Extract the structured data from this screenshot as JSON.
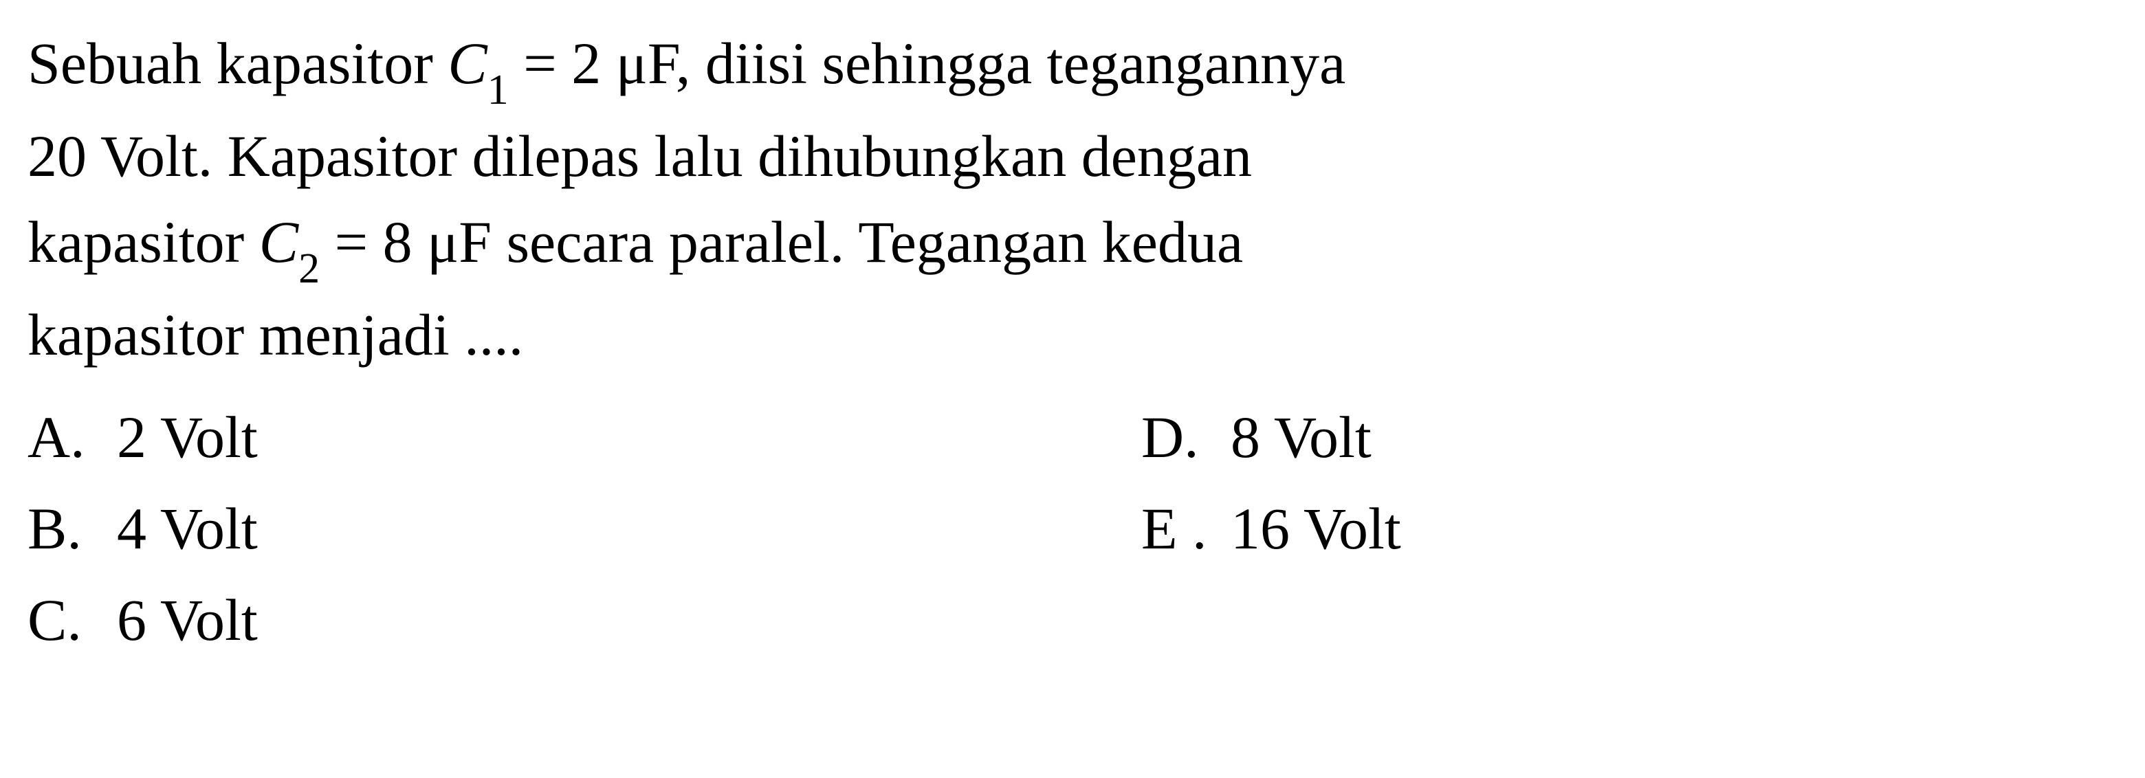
{
  "question": {
    "line1_part1": "Sebuah kapasitor ",
    "line1_var1": "C",
    "line1_sub1": "1",
    "line1_part2": " = 2 μF, diisi sehingga tegangannya",
    "line2": "20 Volt. Kapasitor dilepas lalu dihubungkan dengan",
    "line3_part1": "kapasitor ",
    "line3_var1": "C",
    "line3_sub1": "2",
    "line3_part2": " = 8 μF secara paralel. Tegangan kedua",
    "line4": "kapasitor menjadi ...."
  },
  "options": {
    "a": {
      "letter": "A.",
      "value": "2 Volt"
    },
    "b": {
      "letter": "B.",
      "value": "4 Volt"
    },
    "c": {
      "letter": "C.",
      "value": "6 Volt"
    },
    "d": {
      "letter": "D.",
      "value": "8 Volt"
    },
    "e": {
      "letter": "E .",
      "value": "16 Volt"
    }
  },
  "styling": {
    "background_color": "#ffffff",
    "text_color": "#000000",
    "font_family": "Georgia, 'Times New Roman', serif",
    "question_fontsize": 86,
    "subscript_fontsize": 62,
    "option_fontsize": 86,
    "line_height": 1.45
  }
}
